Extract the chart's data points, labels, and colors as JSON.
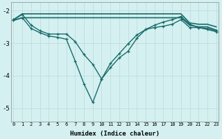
{
  "xlabel": "Humidex (Indice chaleur)",
  "bg_color": "#d4f0f0",
  "grid_color": "#c0dcdc",
  "line_color": "#1a6b6b",
  "x_ticks": [
    0,
    1,
    2,
    3,
    4,
    5,
    6,
    7,
    8,
    9,
    10,
    11,
    12,
    13,
    14,
    15,
    16,
    17,
    18,
    19,
    20,
    21,
    22,
    23
  ],
  "ylim": [
    -5.4,
    -1.75
  ],
  "xlim": [
    -0.3,
    23.3
  ],
  "yticks": [
    -2,
    -3,
    -4,
    -5
  ],
  "series": [
    {
      "x": [
        0,
        1,
        2,
        3,
        4,
        5,
        6,
        7,
        8,
        9,
        10,
        11,
        12,
        13,
        14,
        15,
        16,
        17,
        18,
        19,
        20,
        21,
        22,
        23
      ],
      "y": [
        -2.28,
        -2.1,
        -2.1,
        -2.1,
        -2.1,
        -2.1,
        -2.1,
        -2.1,
        -2.1,
        -2.1,
        -2.1,
        -2.1,
        -2.1,
        -2.1,
        -2.1,
        -2.1,
        -2.1,
        -2.1,
        -2.1,
        -2.1,
        -2.38,
        -2.42,
        -2.42,
        -2.5
      ],
      "marker": null,
      "lw": 1.2
    },
    {
      "x": [
        0,
        1,
        2,
        3,
        4,
        5,
        6,
        7,
        8,
        9,
        10,
        11,
        12,
        13,
        14,
        15,
        16,
        17,
        18,
        19,
        20,
        21,
        22,
        23
      ],
      "y": [
        -2.3,
        -2.22,
        -2.22,
        -2.22,
        -2.22,
        -2.22,
        -2.22,
        -2.22,
        -2.22,
        -2.22,
        -2.22,
        -2.22,
        -2.22,
        -2.22,
        -2.22,
        -2.22,
        -2.22,
        -2.22,
        -2.22,
        -2.22,
        -2.45,
        -2.5,
        -2.5,
        -2.6
      ],
      "marker": null,
      "lw": 1.2
    },
    {
      "x": [
        0,
        1,
        2,
        3,
        4,
        5,
        6,
        7,
        8,
        9,
        10,
        11,
        12,
        13,
        14,
        15,
        16,
        17,
        18,
        19,
        20,
        21,
        22,
        23
      ],
      "y": [
        -2.28,
        -2.12,
        -2.45,
        -2.62,
        -2.72,
        -2.72,
        -2.72,
        -2.95,
        -3.35,
        -3.65,
        -4.1,
        -3.75,
        -3.45,
        -3.25,
        -2.85,
        -2.58,
        -2.45,
        -2.35,
        -2.28,
        -2.18,
        -2.42,
        -2.52,
        -2.55,
        -2.62
      ],
      "marker": "+",
      "lw": 1.0,
      "ms": 3.5
    },
    {
      "x": [
        0,
        1,
        2,
        3,
        4,
        5,
        6,
        7,
        8,
        9,
        10,
        11,
        12,
        13,
        14,
        15,
        16,
        17,
        18,
        19,
        20,
        21,
        22,
        23
      ],
      "y": [
        -2.3,
        -2.22,
        -2.55,
        -2.68,
        -2.78,
        -2.82,
        -2.88,
        -3.55,
        -4.25,
        -4.82,
        -4.1,
        -3.62,
        -3.32,
        -3.02,
        -2.75,
        -2.58,
        -2.52,
        -2.48,
        -2.42,
        -2.28,
        -2.52,
        -2.52,
        -2.58,
        -2.65
      ],
      "marker": "+",
      "lw": 1.0,
      "ms": 3.5
    }
  ]
}
